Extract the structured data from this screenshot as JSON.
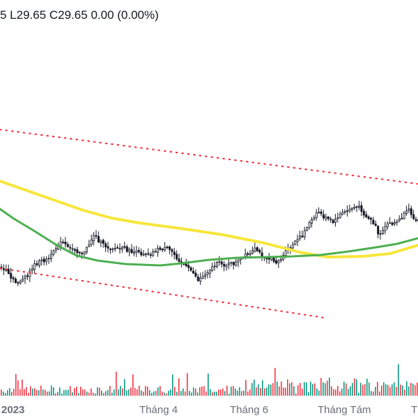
{
  "header": {
    "ohlc_text": "5  L29.65  C29.65  0.00 (0.00%)"
  },
  "colors": {
    "up": "#089981",
    "down": "#f23645",
    "ma_yellow": "#f7e63b",
    "ma_green": "#4caf50",
    "channel": "#f23645"
  },
  "chart_data": {
    "type": "candlestick",
    "x_ticks": [
      "2023",
      "Tháng 4",
      "Tháng 6",
      "Tháng Tám",
      "T"
    ],
    "channel_upper": [
      [
        0,
        186
      ],
      [
        600,
        264
      ]
    ],
    "channel_lower": [
      [
        0,
        385
      ],
      [
        465,
        456
      ]
    ],
    "ma_yellow": [
      [
        0,
        260
      ],
      [
        40,
        274
      ],
      [
        80,
        288
      ],
      [
        120,
        302
      ],
      [
        160,
        313
      ],
      [
        200,
        320
      ],
      [
        260,
        328
      ],
      [
        320,
        337
      ],
      [
        380,
        349
      ],
      [
        430,
        362
      ],
      [
        470,
        369
      ],
      [
        520,
        368
      ],
      [
        560,
        364
      ],
      [
        600,
        352
      ]
    ],
    "ma_green": [
      [
        0,
        300
      ],
      [
        20,
        314
      ],
      [
        50,
        332
      ],
      [
        80,
        351
      ],
      [
        110,
        367
      ],
      [
        140,
        374
      ],
      [
        180,
        379
      ],
      [
        230,
        381
      ],
      [
        260,
        378
      ],
      [
        300,
        373
      ],
      [
        340,
        370
      ],
      [
        380,
        369
      ],
      [
        420,
        368
      ],
      [
        460,
        366
      ],
      [
        500,
        361
      ],
      [
        540,
        355
      ],
      [
        570,
        350
      ],
      [
        600,
        342
      ]
    ],
    "candle_path": [
      [
        0,
        384
      ],
      [
        8,
        390
      ],
      [
        15,
        400
      ],
      [
        22,
        406
      ],
      [
        30,
        402
      ],
      [
        38,
        397
      ],
      [
        45,
        384
      ],
      [
        52,
        378
      ],
      [
        60,
        374
      ],
      [
        67,
        373
      ],
      [
        75,
        364
      ],
      [
        82,
        350
      ],
      [
        90,
        348
      ],
      [
        97,
        357
      ],
      [
        105,
        357
      ],
      [
        112,
        362
      ],
      [
        120,
        363
      ],
      [
        127,
        350
      ],
      [
        134,
        336
      ],
      [
        141,
        346
      ],
      [
        148,
        352
      ],
      [
        156,
        356
      ],
      [
        163,
        356
      ],
      [
        171,
        357
      ],
      [
        178,
        357
      ],
      [
        186,
        361
      ],
      [
        193,
        362
      ],
      [
        201,
        364
      ],
      [
        208,
        363
      ],
      [
        216,
        364
      ],
      [
        223,
        359
      ],
      [
        231,
        357
      ],
      [
        238,
        357
      ],
      [
        246,
        361
      ],
      [
        253,
        370
      ],
      [
        261,
        378
      ],
      [
        268,
        385
      ],
      [
        276,
        390
      ],
      [
        283,
        402
      ],
      [
        291,
        396
      ],
      [
        298,
        388
      ],
      [
        306,
        382
      ],
      [
        313,
        377
      ],
      [
        321,
        380
      ],
      [
        328,
        379
      ],
      [
        336,
        378
      ],
      [
        343,
        373
      ],
      [
        351,
        367
      ],
      [
        358,
        365
      ],
      [
        366,
        357
      ],
      [
        373,
        365
      ],
      [
        381,
        370
      ],
      [
        388,
        372
      ],
      [
        396,
        376
      ],
      [
        403,
        371
      ],
      [
        411,
        359
      ],
      [
        418,
        353
      ],
      [
        426,
        344
      ],
      [
        433,
        338
      ],
      [
        441,
        322
      ],
      [
        449,
        314
      ],
      [
        456,
        303
      ],
      [
        463,
        311
      ],
      [
        471,
        315
      ],
      [
        478,
        320
      ],
      [
        486,
        308
      ],
      [
        493,
        305
      ],
      [
        501,
        300
      ],
      [
        508,
        297
      ],
      [
        516,
        298
      ],
      [
        523,
        310
      ],
      [
        531,
        315
      ],
      [
        538,
        325
      ],
      [
        543,
        340
      ],
      [
        548,
        333
      ],
      [
        556,
        320
      ],
      [
        563,
        321
      ],
      [
        571,
        317
      ],
      [
        578,
        309
      ],
      [
        586,
        302
      ],
      [
        593,
        312
      ],
      [
        600,
        318
      ]
    ]
  }
}
